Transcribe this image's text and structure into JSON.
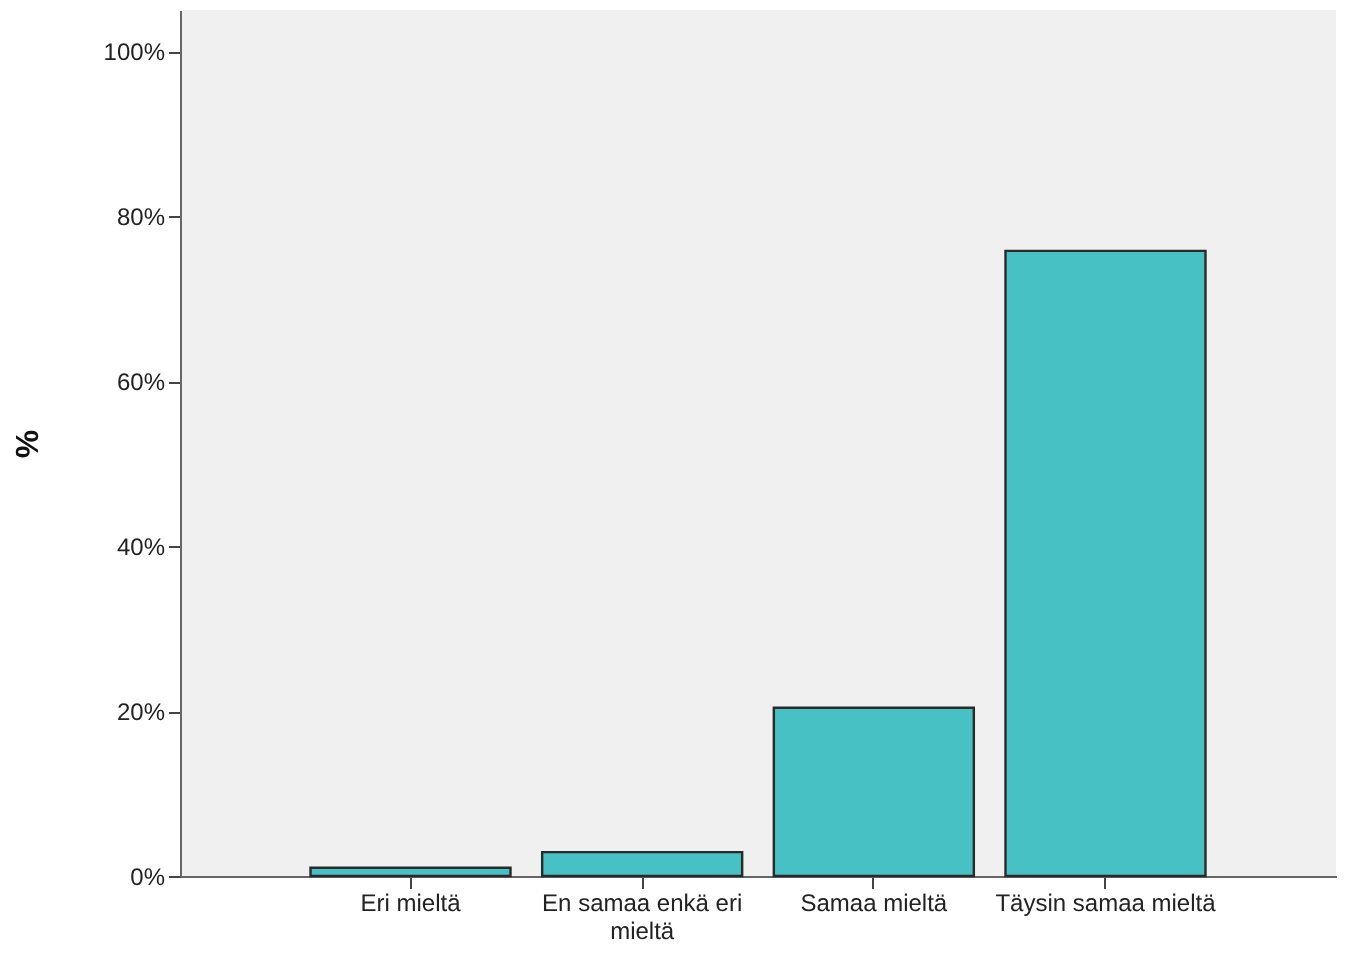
{
  "chart_data": {
    "type": "bar",
    "ylabel": "%",
    "categories": [
      "Eri mieltä",
      "En samaa enkä eri mieltä",
      "Samaa mieltä",
      "Täysin samaa mieltä"
    ],
    "values": [
      1.0,
      2.9,
      20.4,
      75.8
    ],
    "color": "#48c1c4",
    "ylim": [
      0,
      105
    ],
    "yticks": [
      {
        "value": 0,
        "label": "0%"
      },
      {
        "value": 20,
        "label": "20%"
      },
      {
        "value": 40,
        "label": "40%"
      },
      {
        "value": 60,
        "label": "60%"
      },
      {
        "value": 80,
        "label": "80%"
      },
      {
        "value": 100,
        "label": "100%"
      }
    ],
    "grid": false
  }
}
